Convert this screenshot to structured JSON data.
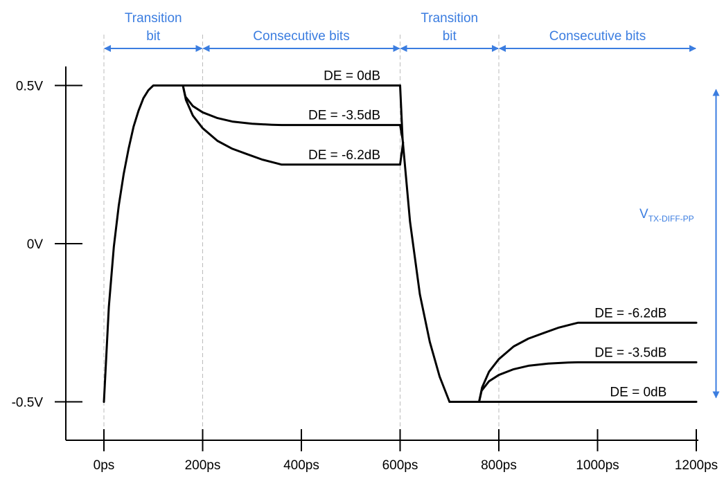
{
  "colors": {
    "axis": "#000000",
    "curve": "#000000",
    "annotation": "#3b7de0",
    "guide": "#bbbbbb"
  },
  "chart_data": {
    "type": "line",
    "x_unit": "ps",
    "y_unit": "V",
    "xlim": [
      0,
      1200
    ],
    "ylim": [
      -0.5,
      0.5
    ],
    "x_ticks": [
      {
        "value": 0,
        "label": "0ps"
      },
      {
        "value": 200,
        "label": "200ps"
      },
      {
        "value": 400,
        "label": "400ps"
      },
      {
        "value": 600,
        "label": "600ps"
      },
      {
        "value": 800,
        "label": "800ps"
      },
      {
        "value": 1000,
        "label": "1000ps"
      },
      {
        "value": 1200,
        "label": "1200ps"
      }
    ],
    "y_ticks": [
      {
        "value": 0.5,
        "label": "0.5V"
      },
      {
        "value": 0,
        "label": "0V"
      },
      {
        "value": -0.5,
        "label": "-0.5V"
      }
    ],
    "guide_lines_x": [
      0,
      200,
      600,
      800
    ],
    "curve_labels": [
      {
        "text": "DE = 0dB",
        "x": 560,
        "y": 0.5
      },
      {
        "text": "DE = -3.5dB",
        "x": 560,
        "y": 0.375
      },
      {
        "text": "DE = -6.2dB",
        "x": 560,
        "y": 0.25
      },
      {
        "text": "DE = -6.2dB",
        "x": 1140,
        "y": -0.25
      },
      {
        "text": "DE = -3.5dB",
        "x": 1140,
        "y": -0.375
      },
      {
        "text": "DE = 0dB",
        "x": 1140,
        "y": -0.5
      }
    ],
    "annotations": {
      "intervals": [
        {
          "label_lines": [
            "Transition",
            "bit"
          ],
          "x_start": 0,
          "x_end": 200
        },
        {
          "label_lines": [
            "Consecutive bits"
          ],
          "x_start": 200,
          "x_end": 600
        },
        {
          "label_lines": [
            "Transition",
            "bit"
          ],
          "x_start": 600,
          "x_end": 800
        },
        {
          "label_lines": [
            "Consecutive bits"
          ],
          "x_start": 800,
          "x_end": 1200
        }
      ],
      "swing": {
        "label": "V",
        "subscript": "TX-DIFF-PP",
        "x": 1240,
        "y_from": -0.5,
        "y_to": 0.5
      }
    },
    "series": [
      {
        "key": "rise",
        "points": [
          [
            0,
            -0.5
          ],
          [
            10,
            -0.2
          ],
          [
            20,
            -0.01
          ],
          [
            30,
            0.12
          ],
          [
            40,
            0.22
          ],
          [
            50,
            0.3
          ],
          [
            60,
            0.37
          ],
          [
            70,
            0.42
          ],
          [
            80,
            0.46
          ],
          [
            90,
            0.485
          ],
          [
            100,
            0.5
          ],
          [
            160,
            0.5
          ]
        ]
      },
      {
        "key": "high_0dB",
        "points": [
          [
            160,
            0.5
          ],
          [
            600,
            0.5
          ]
        ]
      },
      {
        "key": "high_3_5dB",
        "points": [
          [
            160,
            0.5
          ],
          [
            165,
            0.465
          ],
          [
            180,
            0.435
          ],
          [
            200,
            0.415
          ],
          [
            230,
            0.397
          ],
          [
            260,
            0.386
          ],
          [
            300,
            0.379
          ],
          [
            340,
            0.376
          ],
          [
            360,
            0.375
          ],
          [
            600,
            0.375
          ]
        ]
      },
      {
        "key": "high_6_2dB",
        "points": [
          [
            160,
            0.5
          ],
          [
            166,
            0.455
          ],
          [
            180,
            0.405
          ],
          [
            200,
            0.365
          ],
          [
            230,
            0.325
          ],
          [
            260,
            0.3
          ],
          [
            290,
            0.283
          ],
          [
            320,
            0.266
          ],
          [
            350,
            0.254
          ],
          [
            360,
            0.25
          ],
          [
            600,
            0.25
          ]
        ]
      },
      {
        "key": "fall_0dB",
        "points": [
          [
            600,
            0.5
          ],
          [
            605,
            0.33
          ],
          [
            620,
            0.07
          ],
          [
            640,
            -0.16
          ],
          [
            660,
            -0.31
          ],
          [
            680,
            -0.42
          ],
          [
            700,
            -0.5
          ]
        ]
      },
      {
        "key": "fall_3_5dB",
        "points": [
          [
            600,
            0.375
          ],
          [
            605,
            0.33
          ]
        ]
      },
      {
        "key": "fall_6_2dB",
        "points": [
          [
            600,
            0.25
          ],
          [
            606,
            0.32
          ]
        ]
      },
      {
        "key": "low_0dB",
        "points": [
          [
            700,
            -0.5
          ],
          [
            1200,
            -0.5
          ]
        ]
      },
      {
        "key": "low_3_5dB",
        "points": [
          [
            760,
            -0.5
          ],
          [
            765,
            -0.465
          ],
          [
            780,
            -0.435
          ],
          [
            800,
            -0.415
          ],
          [
            830,
            -0.397
          ],
          [
            860,
            -0.386
          ],
          [
            900,
            -0.379
          ],
          [
            940,
            -0.376
          ],
          [
            960,
            -0.375
          ],
          [
            1200,
            -0.375
          ]
        ]
      },
      {
        "key": "low_6_2dB",
        "points": [
          [
            760,
            -0.5
          ],
          [
            766,
            -0.455
          ],
          [
            780,
            -0.405
          ],
          [
            800,
            -0.365
          ],
          [
            830,
            -0.325
          ],
          [
            860,
            -0.3
          ],
          [
            890,
            -0.283
          ],
          [
            920,
            -0.266
          ],
          [
            950,
            -0.254
          ],
          [
            960,
            -0.25
          ],
          [
            1200,
            -0.25
          ]
        ]
      }
    ]
  }
}
